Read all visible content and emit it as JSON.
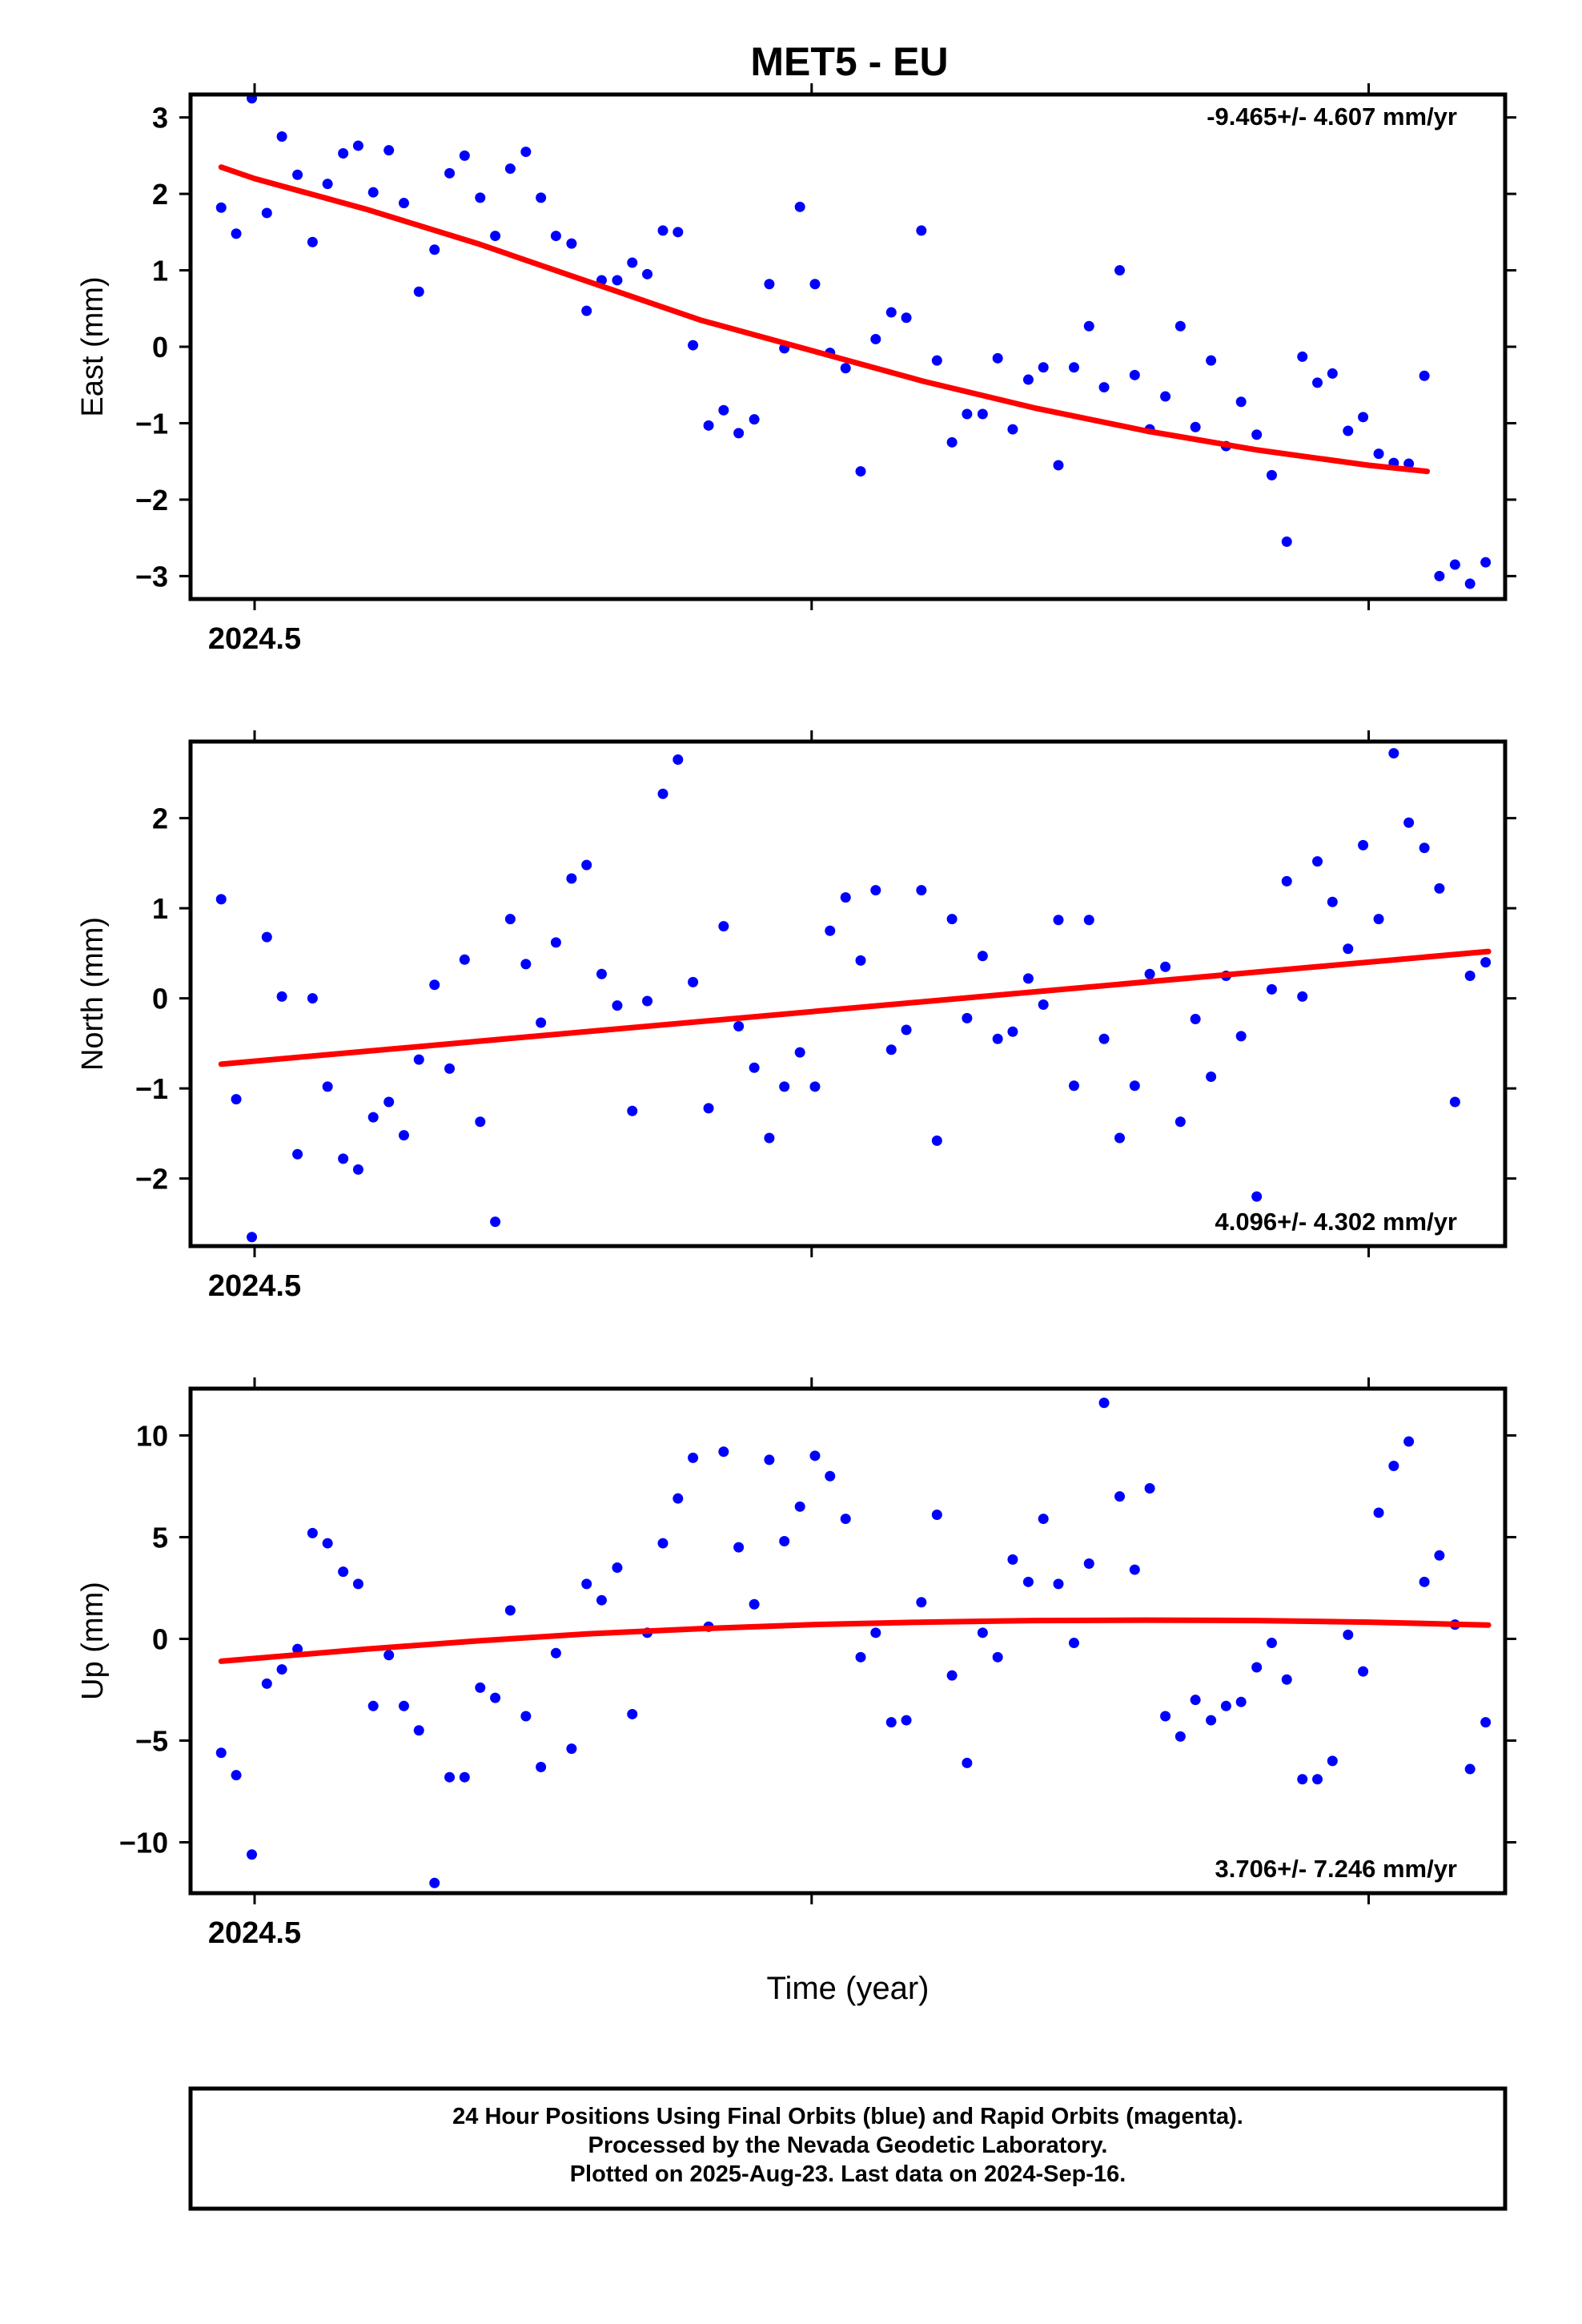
{
  "page": {
    "title": "MET5 - EU"
  },
  "colors": {
    "final_orbits": "#0000ff",
    "trend": "#ff0000",
    "frame": "#000000"
  },
  "footer": {
    "line1": "24 Hour Positions Using Final Orbits (blue) and Rapid Orbits (magenta).",
    "line2": "Processed by the Nevada Geodetic Laboratory.",
    "line3": "Plotted on 2025-Aug-23. Last data on 2024-Sep-16."
  },
  "chart_data": [
    {
      "type": "scatter",
      "ylabel": "East (mm)",
      "xlabel": "",
      "xlim": [
        2024.4885,
        2024.7245
      ],
      "ylim": [
        -3.3,
        3.3
      ],
      "yticks": [
        -3,
        -2,
        -1,
        0,
        1,
        2,
        3
      ],
      "xticks": [
        {
          "value": 2024.5,
          "label": "2024.5"
        },
        {
          "value": 2024.6,
          "label": ""
        },
        {
          "value": 2024.7,
          "label": ""
        }
      ],
      "rate": "-9.465+/- 4.607 mm/yr",
      "rate_position": "top-right",
      "trend": {
        "x": [
          2024.494,
          2024.5,
          2024.52,
          2024.54,
          2024.56,
          2024.58,
          2024.6,
          2024.62,
          2024.64,
          2024.66,
          2024.68,
          2024.7,
          2024.7105
        ],
        "y": [
          2.35,
          2.2,
          1.8,
          1.35,
          0.85,
          0.35,
          -0.05,
          -0.45,
          -0.8,
          -1.1,
          -1.35,
          -1.55,
          -1.63
        ]
      },
      "points": {
        "x": [
          2024.494,
          2024.4967,
          2024.4995,
          2024.5022,
          2024.5049,
          2024.5077,
          2024.5104,
          2024.5131,
          2024.5159,
          2024.5186,
          2024.5213,
          2024.5241,
          2024.5268,
          2024.5295,
          2024.5323,
          2024.535,
          2024.5377,
          2024.5405,
          2024.5432,
          2024.5459,
          2024.5487,
          2024.5514,
          2024.5541,
          2024.5569,
          2024.5596,
          2024.5623,
          2024.5651,
          2024.5678,
          2024.5705,
          2024.5733,
          2024.576,
          2024.5787,
          2024.5815,
          2024.5842,
          2024.5869,
          2024.5897,
          2024.5924,
          2024.5951,
          2024.5979,
          2024.6006,
          2024.6033,
          2024.6061,
          2024.6088,
          2024.6115,
          2024.6143,
          2024.617,
          2024.6197,
          2024.6225,
          2024.6252,
          2024.6279,
          2024.6307,
          2024.6334,
          2024.6361,
          2024.6389,
          2024.6416,
          2024.6443,
          2024.6471,
          2024.6498,
          2024.6525,
          2024.6553,
          2024.658,
          2024.6607,
          2024.6635,
          2024.6662,
          2024.6689,
          2024.6717,
          2024.6744,
          2024.6771,
          2024.6799,
          2024.6826,
          2024.6853,
          2024.6881,
          2024.6908,
          2024.6935,
          2024.6963,
          2024.699,
          2024.7018,
          2024.7045,
          2024.7072,
          2024.71
        ],
        "y": [
          1.82,
          1.48,
          3.25,
          1.75,
          2.75,
          2.25,
          1.37,
          2.13,
          2.53,
          2.63,
          2.02,
          2.57,
          1.88,
          0.72,
          1.27,
          2.27,
          2.5,
          1.95,
          1.45,
          2.33,
          2.55,
          1.95,
          1.45,
          1.35,
          0.47,
          0.87,
          0.87,
          1.1,
          0.95,
          1.52,
          1.5,
          0.02,
          -1.03,
          -0.83,
          -1.13,
          -0.95,
          0.82,
          -0.02,
          1.83,
          0.82,
          -0.08,
          -0.28,
          -1.63,
          0.1,
          0.45,
          0.38,
          1.52,
          -0.18,
          -1.25,
          -0.88,
          -0.88,
          -0.15,
          -1.08,
          -0.43,
          -0.27,
          -1.55,
          -0.27,
          0.27,
          -0.53,
          1,
          -0.37,
          -1.08,
          -0.65,
          0.27,
          -1.05,
          -0.18,
          -1.3,
          -0.72,
          -1.15,
          -1.68,
          -2.55,
          -0.13,
          -0.47,
          -0.35,
          -1.1,
          -0.92,
          -1.4,
          -1.52,
          -1.53,
          -0.38
        ]
      },
      "points_late": {
        "x": [
          2024.7127,
          2024.7155,
          2024.7182,
          2024.721
        ],
        "y": [
          -3.0,
          -2.85,
          -3.1,
          -2.82
        ]
      }
    },
    {
      "type": "scatter",
      "ylabel": "North (mm)",
      "xlabel": "",
      "xlim": [
        2024.4885,
        2024.7245
      ],
      "ylim": [
        -2.75,
        2.85
      ],
      "yticks": [
        -2,
        -1,
        0,
        1,
        2
      ],
      "xticks": [
        {
          "value": 2024.5,
          "label": "2024.5"
        },
        {
          "value": 2024.6,
          "label": ""
        },
        {
          "value": 2024.7,
          "label": ""
        }
      ],
      "rate": "4.096+/- 4.302 mm/yr",
      "rate_position": "bottom-right",
      "trend": {
        "x": [
          2024.494,
          2024.7215
        ],
        "y": [
          -0.73,
          0.52
        ]
      },
      "points": {
        "x": [
          2024.494,
          2024.4967,
          2024.4995,
          2024.5022,
          2024.5049,
          2024.5077,
          2024.5104,
          2024.5131,
          2024.5159,
          2024.5186,
          2024.5213,
          2024.5241,
          2024.5268,
          2024.5295,
          2024.5323,
          2024.535,
          2024.5377,
          2024.5405,
          2024.5432,
          2024.5459,
          2024.5487,
          2024.5514,
          2024.5541,
          2024.5569,
          2024.5596,
          2024.5623,
          2024.5651,
          2024.5678,
          2024.5705,
          2024.5733,
          2024.576,
          2024.5787,
          2024.5815,
          2024.5842,
          2024.5869,
          2024.5897,
          2024.5924,
          2024.5951,
          2024.5979,
          2024.6006,
          2024.6033,
          2024.6061,
          2024.6088,
          2024.6115,
          2024.6143,
          2024.617,
          2024.6197,
          2024.6225,
          2024.6252,
          2024.6279,
          2024.6307,
          2024.6334,
          2024.6361,
          2024.6389,
          2024.6416,
          2024.6443,
          2024.6471,
          2024.6498,
          2024.6525,
          2024.6553,
          2024.658,
          2024.6607,
          2024.6635,
          2024.6662,
          2024.6689,
          2024.6717,
          2024.6744,
          2024.6771,
          2024.6799,
          2024.6826,
          2024.6853,
          2024.6881,
          2024.6908,
          2024.6935,
          2024.6963,
          2024.699,
          2024.7018,
          2024.7045,
          2024.7072,
          2024.71,
          2024.7127,
          2024.7155,
          2024.7182,
          2024.721
        ],
        "y": [
          1.1,
          -1.12,
          -2.65,
          0.68,
          0.02,
          -1.73,
          0,
          -0.98,
          -1.78,
          -1.9,
          -1.32,
          -1.15,
          -1.52,
          -0.68,
          0.15,
          -0.78,
          0.43,
          -1.37,
          -2.48,
          0.88,
          0.38,
          -0.27,
          0.62,
          1.33,
          1.48,
          0.27,
          -0.08,
          -1.25,
          -0.03,
          2.27,
          2.65,
          0.18,
          -1.22,
          0.8,
          -0.31,
          -0.77,
          -1.55,
          -0.98,
          -0.6,
          -0.98,
          0.75,
          1.12,
          0.42,
          1.2,
          -0.57,
          -0.35,
          1.2,
          -1.58,
          0.88,
          -0.22,
          0.47,
          -0.45,
          -0.37,
          0.22,
          -0.07,
          0.87,
          -0.97,
          0.87,
          -0.45,
          -1.55,
          -0.97,
          0.27,
          0.35,
          -1.37,
          -0.23,
          -0.87,
          0.25,
          -0.42,
          -2.2,
          0.1,
          1.3,
          0.02,
          1.52,
          1.07,
          0.55,
          1.7,
          0.88,
          2.72,
          1.95,
          1.67,
          1.22,
          -1.15,
          0.25,
          0.4
        ]
      },
      "points_late": {
        "x": [],
        "y": []
      }
    },
    {
      "type": "scatter",
      "ylabel": "Up (mm)",
      "xlabel": "Time (year)",
      "xlim": [
        2024.4885,
        2024.7245
      ],
      "ylim": [
        -12.5,
        12.3
      ],
      "yticks": [
        -10,
        -5,
        0,
        5,
        10
      ],
      "xticks": [
        {
          "value": 2024.5,
          "label": "2024.5"
        },
        {
          "value": 2024.6,
          "label": ""
        },
        {
          "value": 2024.7,
          "label": ""
        }
      ],
      "rate": "3.706+/- 7.246 mm/yr",
      "rate_position": "bottom-right",
      "trend": {
        "x": [
          2024.494,
          2024.52,
          2024.54,
          2024.56,
          2024.58,
          2024.6,
          2024.62,
          2024.64,
          2024.66,
          2024.68,
          2024.7,
          2024.7215
        ],
        "y": [
          -1.1,
          -0.5,
          -0.1,
          0.25,
          0.5,
          0.7,
          0.82,
          0.9,
          0.92,
          0.9,
          0.82,
          0.68
        ]
      },
      "points": {
        "x": [
          2024.494,
          2024.4967,
          2024.4995,
          2024.5022,
          2024.5049,
          2024.5077,
          2024.5104,
          2024.5131,
          2024.5159,
          2024.5186,
          2024.5213,
          2024.5241,
          2024.5268,
          2024.5295,
          2024.5323,
          2024.535,
          2024.5377,
          2024.5405,
          2024.5432,
          2024.5459,
          2024.5487,
          2024.5514,
          2024.5541,
          2024.5569,
          2024.5596,
          2024.5623,
          2024.5651,
          2024.5678,
          2024.5705,
          2024.5733,
          2024.576,
          2024.5787,
          2024.5815,
          2024.5842,
          2024.5869,
          2024.5897,
          2024.5924,
          2024.5951,
          2024.5979,
          2024.6006,
          2024.6033,
          2024.6061,
          2024.6088,
          2024.6115,
          2024.6143,
          2024.617,
          2024.6197,
          2024.6225,
          2024.6252,
          2024.6279,
          2024.6307,
          2024.6334,
          2024.6361,
          2024.6389,
          2024.6416,
          2024.6443,
          2024.6471,
          2024.6498,
          2024.6525,
          2024.6553,
          2024.658,
          2024.6607,
          2024.6635,
          2024.6662,
          2024.6689,
          2024.6717,
          2024.6744,
          2024.6771,
          2024.6799,
          2024.6826,
          2024.6853,
          2024.6881,
          2024.6908,
          2024.6935,
          2024.6963,
          2024.699,
          2024.7018,
          2024.7045,
          2024.7072,
          2024.71,
          2024.7127,
          2024.7155,
          2024.7182,
          2024.721
        ],
        "y": [
          -5.6,
          -6.7,
          -10.6,
          -2.2,
          -1.5,
          -0.5,
          5.2,
          4.7,
          3.3,
          2.7,
          -3.3,
          -0.8,
          -3.3,
          -4.5,
          -12,
          -6.8,
          -6.8,
          -2.4,
          -2.9,
          1.4,
          -3.8,
          -6.3,
          -0.7,
          -5.4,
          2.7,
          1.9,
          3.5,
          -3.7,
          0.3,
          4.7,
          6.9,
          8.9,
          0.6,
          9.2,
          4.5,
          1.7,
          8.8,
          4.8,
          6.5,
          9,
          8,
          5.9,
          -0.9,
          0.3,
          -4.1,
          -4,
          1.8,
          6.1,
          -1.8,
          -6.1,
          0.3,
          -0.9,
          3.9,
          2.8,
          5.9,
          2.7,
          -0.2,
          3.7,
          11.6,
          7,
          3.4,
          7.4,
          -3.8,
          -4.8,
          -3,
          -4,
          -3.3,
          -3.1,
          -1.4,
          -0.2,
          -2,
          -6.9,
          -6.9,
          -6,
          0.2,
          -1.6,
          6.2,
          8.5,
          9.7,
          2.8,
          4.1,
          0.7,
          -6.4,
          -4.1
        ]
      },
      "points_late": {
        "x": [],
        "y": []
      }
    }
  ]
}
